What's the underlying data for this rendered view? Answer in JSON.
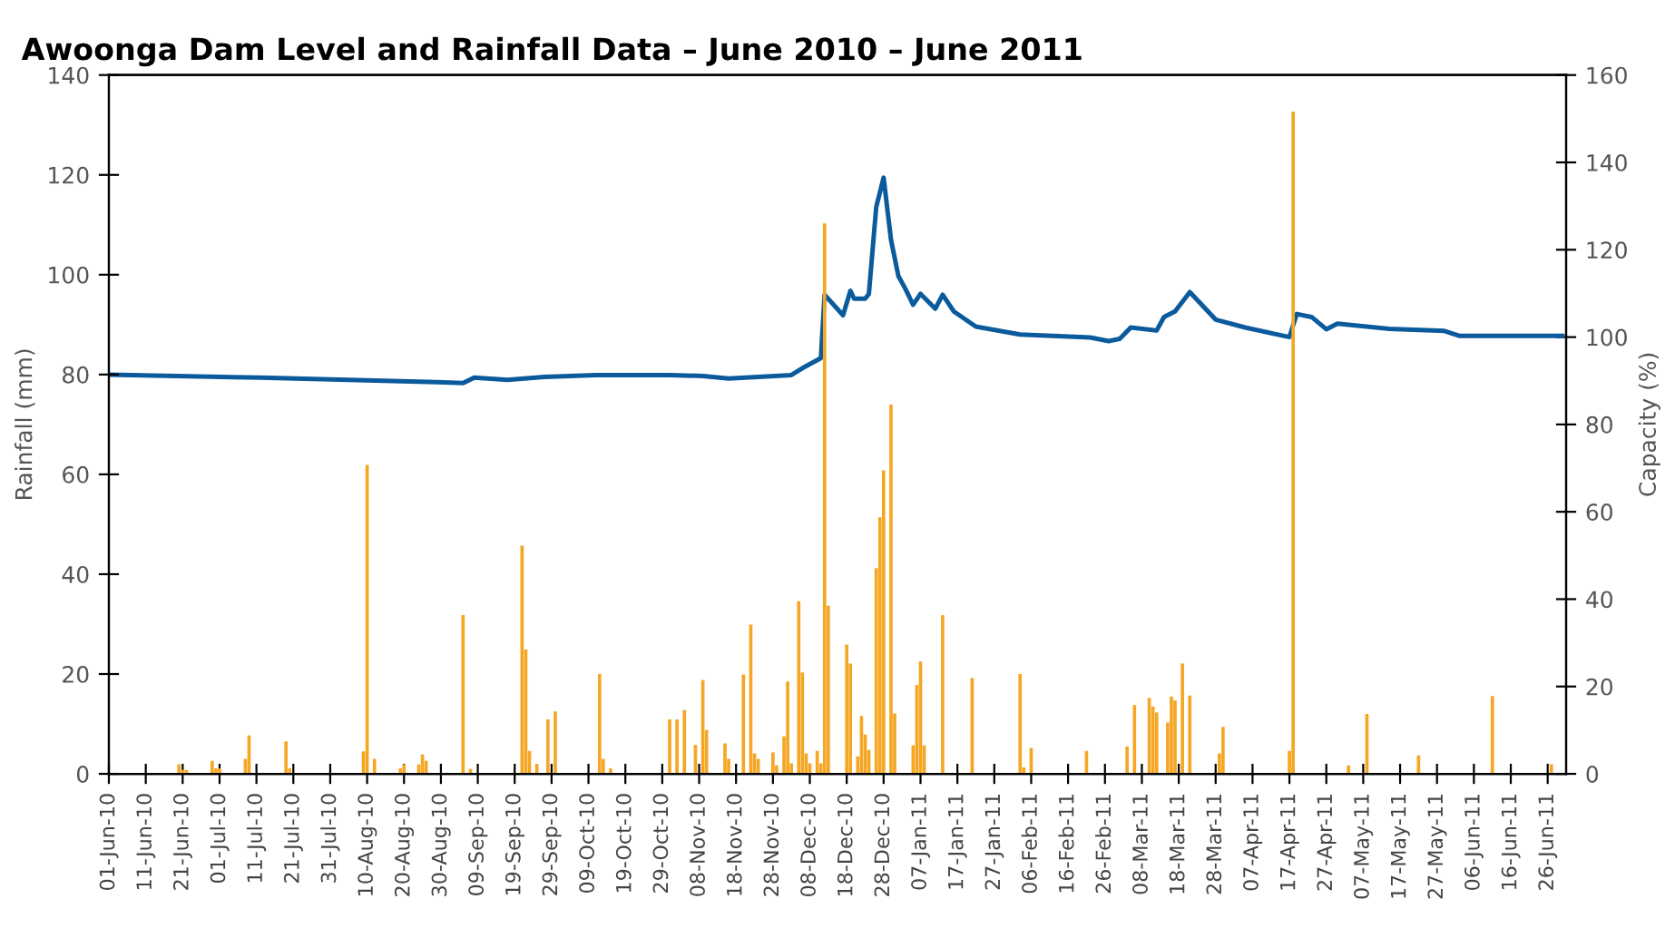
{
  "chart_data": {
    "type": "bar",
    "title": "Awoonga Dam Level and Rainfall Data – June 2010 – June 2011",
    "ylabel": "Rainfall (mm)",
    "y2label": "Capacity (%)",
    "xlim": [
      "2010-06-01",
      "2011-07-01"
    ],
    "ylim": [
      0,
      140
    ],
    "yticks": [
      0,
      20,
      40,
      60,
      80,
      100,
      120,
      140
    ],
    "y2lim": [
      0,
      160
    ],
    "y2ticks": [
      0,
      20,
      40,
      60,
      80,
      100,
      120,
      140,
      160
    ],
    "xticks": [
      {
        "value": "2010-06-01",
        "label": "01-Jun-10"
      },
      {
        "value": "2010-06-11",
        "label": "11-Jun-10"
      },
      {
        "value": "2010-06-21",
        "label": "21-Jun-10"
      },
      {
        "value": "2010-07-01",
        "label": "01-Jul-10"
      },
      {
        "value": "2010-07-11",
        "label": "11-Jul-10"
      },
      {
        "value": "2010-07-21",
        "label": "21-Jul-10"
      },
      {
        "value": "2010-07-31",
        "label": "31-Jul-10"
      },
      {
        "value": "2010-08-10",
        "label": "10-Aug-10"
      },
      {
        "value": "2010-08-20",
        "label": "20-Aug-10"
      },
      {
        "value": "2010-08-30",
        "label": "30-Aug-10"
      },
      {
        "value": "2010-09-09",
        "label": "09-Sep-10"
      },
      {
        "value": "2010-09-19",
        "label": "19-Sep-10"
      },
      {
        "value": "2010-09-29",
        "label": "29-Sep-10"
      },
      {
        "value": "2010-10-09",
        "label": "09-Oct-10"
      },
      {
        "value": "2010-10-19",
        "label": "19-Oct-10"
      },
      {
        "value": "2010-10-29",
        "label": "29-Oct-10"
      },
      {
        "value": "2010-11-08",
        "label": "08-Nov-10"
      },
      {
        "value": "2010-11-18",
        "label": "18-Nov-10"
      },
      {
        "value": "2010-11-28",
        "label": "28-Nov-10"
      },
      {
        "value": "2010-12-08",
        "label": "08-Dec-10"
      },
      {
        "value": "2010-12-18",
        "label": "18-Dec-10"
      },
      {
        "value": "2010-12-28",
        "label": "28-Dec-10"
      },
      {
        "value": "2011-01-07",
        "label": "07-Jan-11"
      },
      {
        "value": "2011-01-17",
        "label": "17-Jan-11"
      },
      {
        "value": "2011-01-27",
        "label": "27-Jan-11"
      },
      {
        "value": "2011-02-06",
        "label": "06-Feb-11"
      },
      {
        "value": "2011-02-16",
        "label": "16-Feb-11"
      },
      {
        "value": "2011-02-26",
        "label": "26-Feb-11"
      },
      {
        "value": "2011-03-08",
        "label": "08-Mar-11"
      },
      {
        "value": "2011-03-18",
        "label": "18-Mar-11"
      },
      {
        "value": "2011-03-28",
        "label": "28-Mar-11"
      },
      {
        "value": "2011-04-07",
        "label": "07-Apr-11"
      },
      {
        "value": "2011-04-17",
        "label": "17-Apr-11"
      },
      {
        "value": "2011-04-27",
        "label": "27-Apr-11"
      },
      {
        "value": "2011-05-07",
        "label": "07-May-11"
      },
      {
        "value": "2011-05-17",
        "label": "17-May-11"
      },
      {
        "value": "2011-05-27",
        "label": "27-May-11"
      },
      {
        "value": "2011-06-06",
        "label": "06-Jun-11"
      },
      {
        "value": "2011-06-16",
        "label": "16-Jun-11"
      },
      {
        "value": "2011-06-26",
        "label": "26-Jun-11"
      }
    ],
    "grid": false,
    "legend": false,
    "series": [
      {
        "color": "#f5a623",
        "x": [
          "2010-06-20",
          "2010-06-21",
          "2010-06-22",
          "2010-06-29",
          "2010-06-30",
          "2010-07-01",
          "2010-07-08",
          "2010-07-09",
          "2010-07-19",
          "2010-07-20",
          "2010-08-09",
          "2010-08-10",
          "2010-08-12",
          "2010-08-19",
          "2010-08-20",
          "2010-08-24",
          "2010-08-25",
          "2010-08-26",
          "2010-09-05",
          "2010-09-07",
          "2010-09-21",
          "2010-09-22",
          "2010-09-23",
          "2010-09-25",
          "2010-09-28",
          "2010-09-30",
          "2010-10-12",
          "2010-10-13",
          "2010-10-15",
          "2010-10-31",
          "2010-11-02",
          "2010-11-04",
          "2010-11-07",
          "2010-11-09",
          "2010-11-10",
          "2010-11-15",
          "2010-11-16",
          "2010-11-20",
          "2010-11-22",
          "2010-11-23",
          "2010-11-24",
          "2010-11-28",
          "2010-11-29",
          "2010-12-01",
          "2010-12-02",
          "2010-12-03",
          "2010-12-05",
          "2010-12-06",
          "2010-12-07",
          "2010-12-08",
          "2010-12-10",
          "2010-12-11",
          "2010-12-12",
          "2010-12-13",
          "2010-12-18",
          "2010-12-19",
          "2010-12-21",
          "2010-12-22",
          "2010-12-23",
          "2010-12-24",
          "2010-12-26",
          "2010-12-27",
          "2010-12-28",
          "2010-12-30",
          "2010-12-31",
          "2011-01-05",
          "2011-01-06",
          "2011-01-07",
          "2011-01-08",
          "2011-01-13",
          "2011-01-21",
          "2011-02-03",
          "2011-02-04",
          "2011-02-06",
          "2011-02-21",
          "2011-03-04",
          "2011-03-06",
          "2011-03-10",
          "2011-03-11",
          "2011-03-12",
          "2011-03-15",
          "2011-03-16",
          "2011-03-17",
          "2011-03-19",
          "2011-03-21",
          "2011-03-29",
          "2011-03-30",
          "2011-04-17",
          "2011-04-18",
          "2011-05-03",
          "2011-05-08",
          "2011-05-22",
          "2011-06-11",
          "2011-06-27"
        ],
        "values": [
          1.9,
          0.8,
          0.8,
          2.6,
          1.1,
          1.1,
          3.0,
          7.7,
          6.5,
          1.1,
          4.5,
          61.9,
          3.0,
          1.1,
          1.9,
          1.9,
          3.9,
          2.6,
          31.8,
          1.0,
          45.7,
          24.9,
          4.6,
          2.0,
          10.9,
          12.5,
          20.0,
          3.0,
          1.1,
          10.9,
          10.9,
          12.8,
          5.8,
          18.8,
          8.8,
          6.1,
          3.0,
          19.9,
          29.9,
          4.1,
          3.0,
          4.3,
          1.7,
          7.5,
          18.5,
          2.1,
          34.6,
          20.3,
          4.1,
          2.1,
          4.6,
          2.1,
          110.3,
          33.7,
          25.9,
          22.1,
          3.5,
          11.6,
          7.9,
          4.8,
          41.2,
          51.4,
          60.8,
          74.0,
          12.1,
          5.7,
          17.8,
          22.5,
          5.7,
          31.8,
          19.2,
          20.0,
          1.3,
          5.2,
          4.6,
          5.5,
          13.8,
          15.2,
          13.5,
          12.3,
          10.3,
          15.5,
          14.7,
          22.1,
          15.7,
          4.1,
          9.4,
          4.6,
          132.7,
          1.7,
          12.0,
          3.7,
          15.6,
          1.9
        ]
      },
      {
        "type": "line",
        "axis": "y2",
        "color": "#0a5a9c",
        "x": [
          "2010-06-01",
          "2010-07-12",
          "2010-08-29",
          "2010-09-05",
          "2010-09-08",
          "2010-09-17",
          "2010-09-27",
          "2010-10-11",
          "2010-10-31",
          "2010-11-09",
          "2010-11-16",
          "2010-12-03",
          "2010-12-06",
          "2010-12-11",
          "2010-12-12",
          "2010-12-17",
          "2010-12-19",
          "2010-12-20",
          "2010-12-23",
          "2010-12-24",
          "2010-12-26",
          "2010-12-28",
          "2010-12-30",
          "2011-01-01",
          "2011-01-03",
          "2011-01-05",
          "2011-01-07",
          "2011-01-11",
          "2011-01-13",
          "2011-01-16",
          "2011-01-22",
          "2011-02-03",
          "2011-02-22",
          "2011-02-27",
          "2011-03-02",
          "2011-03-05",
          "2011-03-12",
          "2011-03-14",
          "2011-03-17",
          "2011-03-21",
          "2011-03-28",
          "2011-04-05",
          "2011-04-17",
          "2011-04-19",
          "2011-04-23",
          "2011-04-27",
          "2011-04-30",
          "2011-05-14",
          "2011-05-29",
          "2011-06-02",
          "2011-06-30"
        ],
        "values": [
          91.4,
          90.7,
          89.7,
          89.5,
          90.7,
          90.2,
          90.9,
          91.3,
          91.3,
          91.1,
          90.5,
          91.3,
          92.9,
          95.2,
          109.7,
          105.0,
          110.6,
          108.8,
          108.8,
          109.9,
          129.8,
          136.5,
          122.3,
          114.0,
          110.9,
          107.4,
          109.9,
          106.5,
          109.7,
          105.9,
          102.4,
          100.6,
          99.9,
          99.1,
          99.6,
          102.2,
          101.5,
          104.6,
          105.9,
          110.3,
          104.0,
          102.2,
          100.0,
          105.3,
          104.6,
          101.8,
          103.1,
          101.9,
          101.4,
          100.3,
          100.3
        ]
      }
    ]
  }
}
